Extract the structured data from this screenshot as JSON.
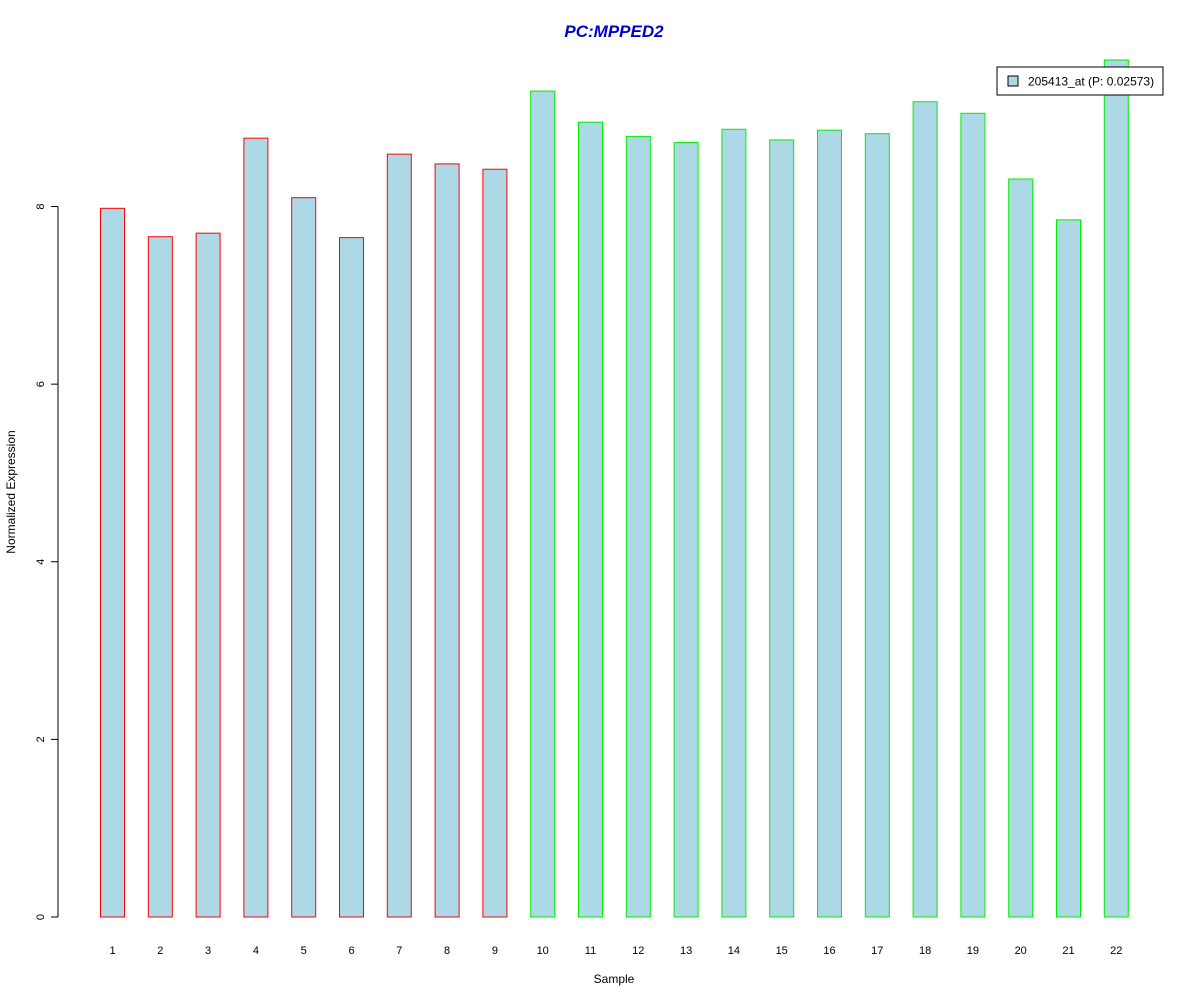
{
  "chart_data": {
    "type": "bar",
    "title": "PC:MPPED2",
    "xlabel": "Sample",
    "ylabel": "Normalized Expression",
    "categories": [
      "1",
      "2",
      "3",
      "4",
      "5",
      "6",
      "7",
      "8",
      "9",
      "10",
      "11",
      "12",
      "13",
      "14",
      "15",
      "16",
      "17",
      "18",
      "19",
      "20",
      "21",
      "22"
    ],
    "series": [
      {
        "name": "205413_at (P: 0.02573)",
        "values": [
          7.98,
          7.66,
          7.7,
          8.77,
          8.1,
          7.65,
          8.59,
          8.48,
          8.42,
          9.3,
          8.95,
          8.79,
          8.72,
          8.87,
          8.75,
          8.86,
          8.82,
          9.18,
          9.05,
          8.31,
          7.85,
          9.65
        ]
      }
    ],
    "groups": [
      {
        "samples": [
          1,
          2,
          3,
          4,
          5,
          6,
          7,
          8,
          9
        ],
        "border_color": "#ff0000"
      },
      {
        "samples": [
          10,
          11,
          12,
          13,
          14,
          15,
          16,
          17,
          18,
          19,
          20,
          21,
          22
        ],
        "border_color": "#00ee00"
      }
    ],
    "yticks": [
      0,
      2,
      4,
      6,
      8
    ],
    "ylim": [
      0,
      9.65
    ],
    "legend_position": "top-right",
    "grid": false,
    "colors": {
      "bar_fill": "#add8e6",
      "title": "#0000cc",
      "axis": "#000000"
    }
  }
}
